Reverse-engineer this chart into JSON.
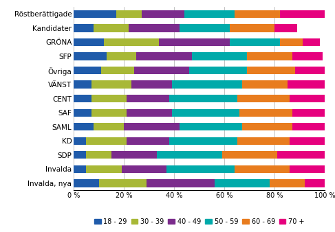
{
  "categories": [
    "Röstberättigade",
    "Kandidater",
    "GRÖNA",
    "SFP",
    "Övriga",
    "VÄNST",
    "CENT",
    "SAF",
    "SAML",
    "KD",
    "SDP",
    "Invalda",
    "Invalda, nya"
  ],
  "age_groups": [
    "18 - 29",
    "30 - 39",
    "40 - 49",
    "50 - 59",
    "60 - 69",
    "70 +"
  ],
  "colors": [
    "#1f5baa",
    "#a8b837",
    "#7b2c8c",
    "#00aaaa",
    "#e87c1e",
    "#e6007e"
  ],
  "values": [
    [
      17,
      10,
      17,
      20,
      18,
      18
    ],
    [
      8,
      14,
      20,
      20,
      18,
      9
    ],
    [
      12,
      22,
      28,
      20,
      9,
      7
    ],
    [
      13,
      12,
      22,
      22,
      18,
      12
    ],
    [
      11,
      13,
      22,
      23,
      19,
      12
    ],
    [
      7,
      16,
      16,
      28,
      18,
      15
    ],
    [
      7,
      14,
      17,
      27,
      21,
      14
    ],
    [
      7,
      14,
      18,
      27,
      21,
      13
    ],
    [
      8,
      12,
      22,
      25,
      20,
      13
    ],
    [
      5,
      16,
      17,
      27,
      21,
      14
    ],
    [
      5,
      10,
      18,
      26,
      22,
      19
    ],
    [
      5,
      14,
      18,
      27,
      22,
      14
    ],
    [
      10,
      19,
      27,
      22,
      14,
      8
    ]
  ],
  "xlabel": "",
  "ylabel": "",
  "title": "",
  "figsize": [
    4.87,
    3.38
  ],
  "dpi": 100,
  "legend_fontsize": 7,
  "tick_fontsize": 7,
  "label_fontsize": 7.5,
  "bar_height": 0.55
}
